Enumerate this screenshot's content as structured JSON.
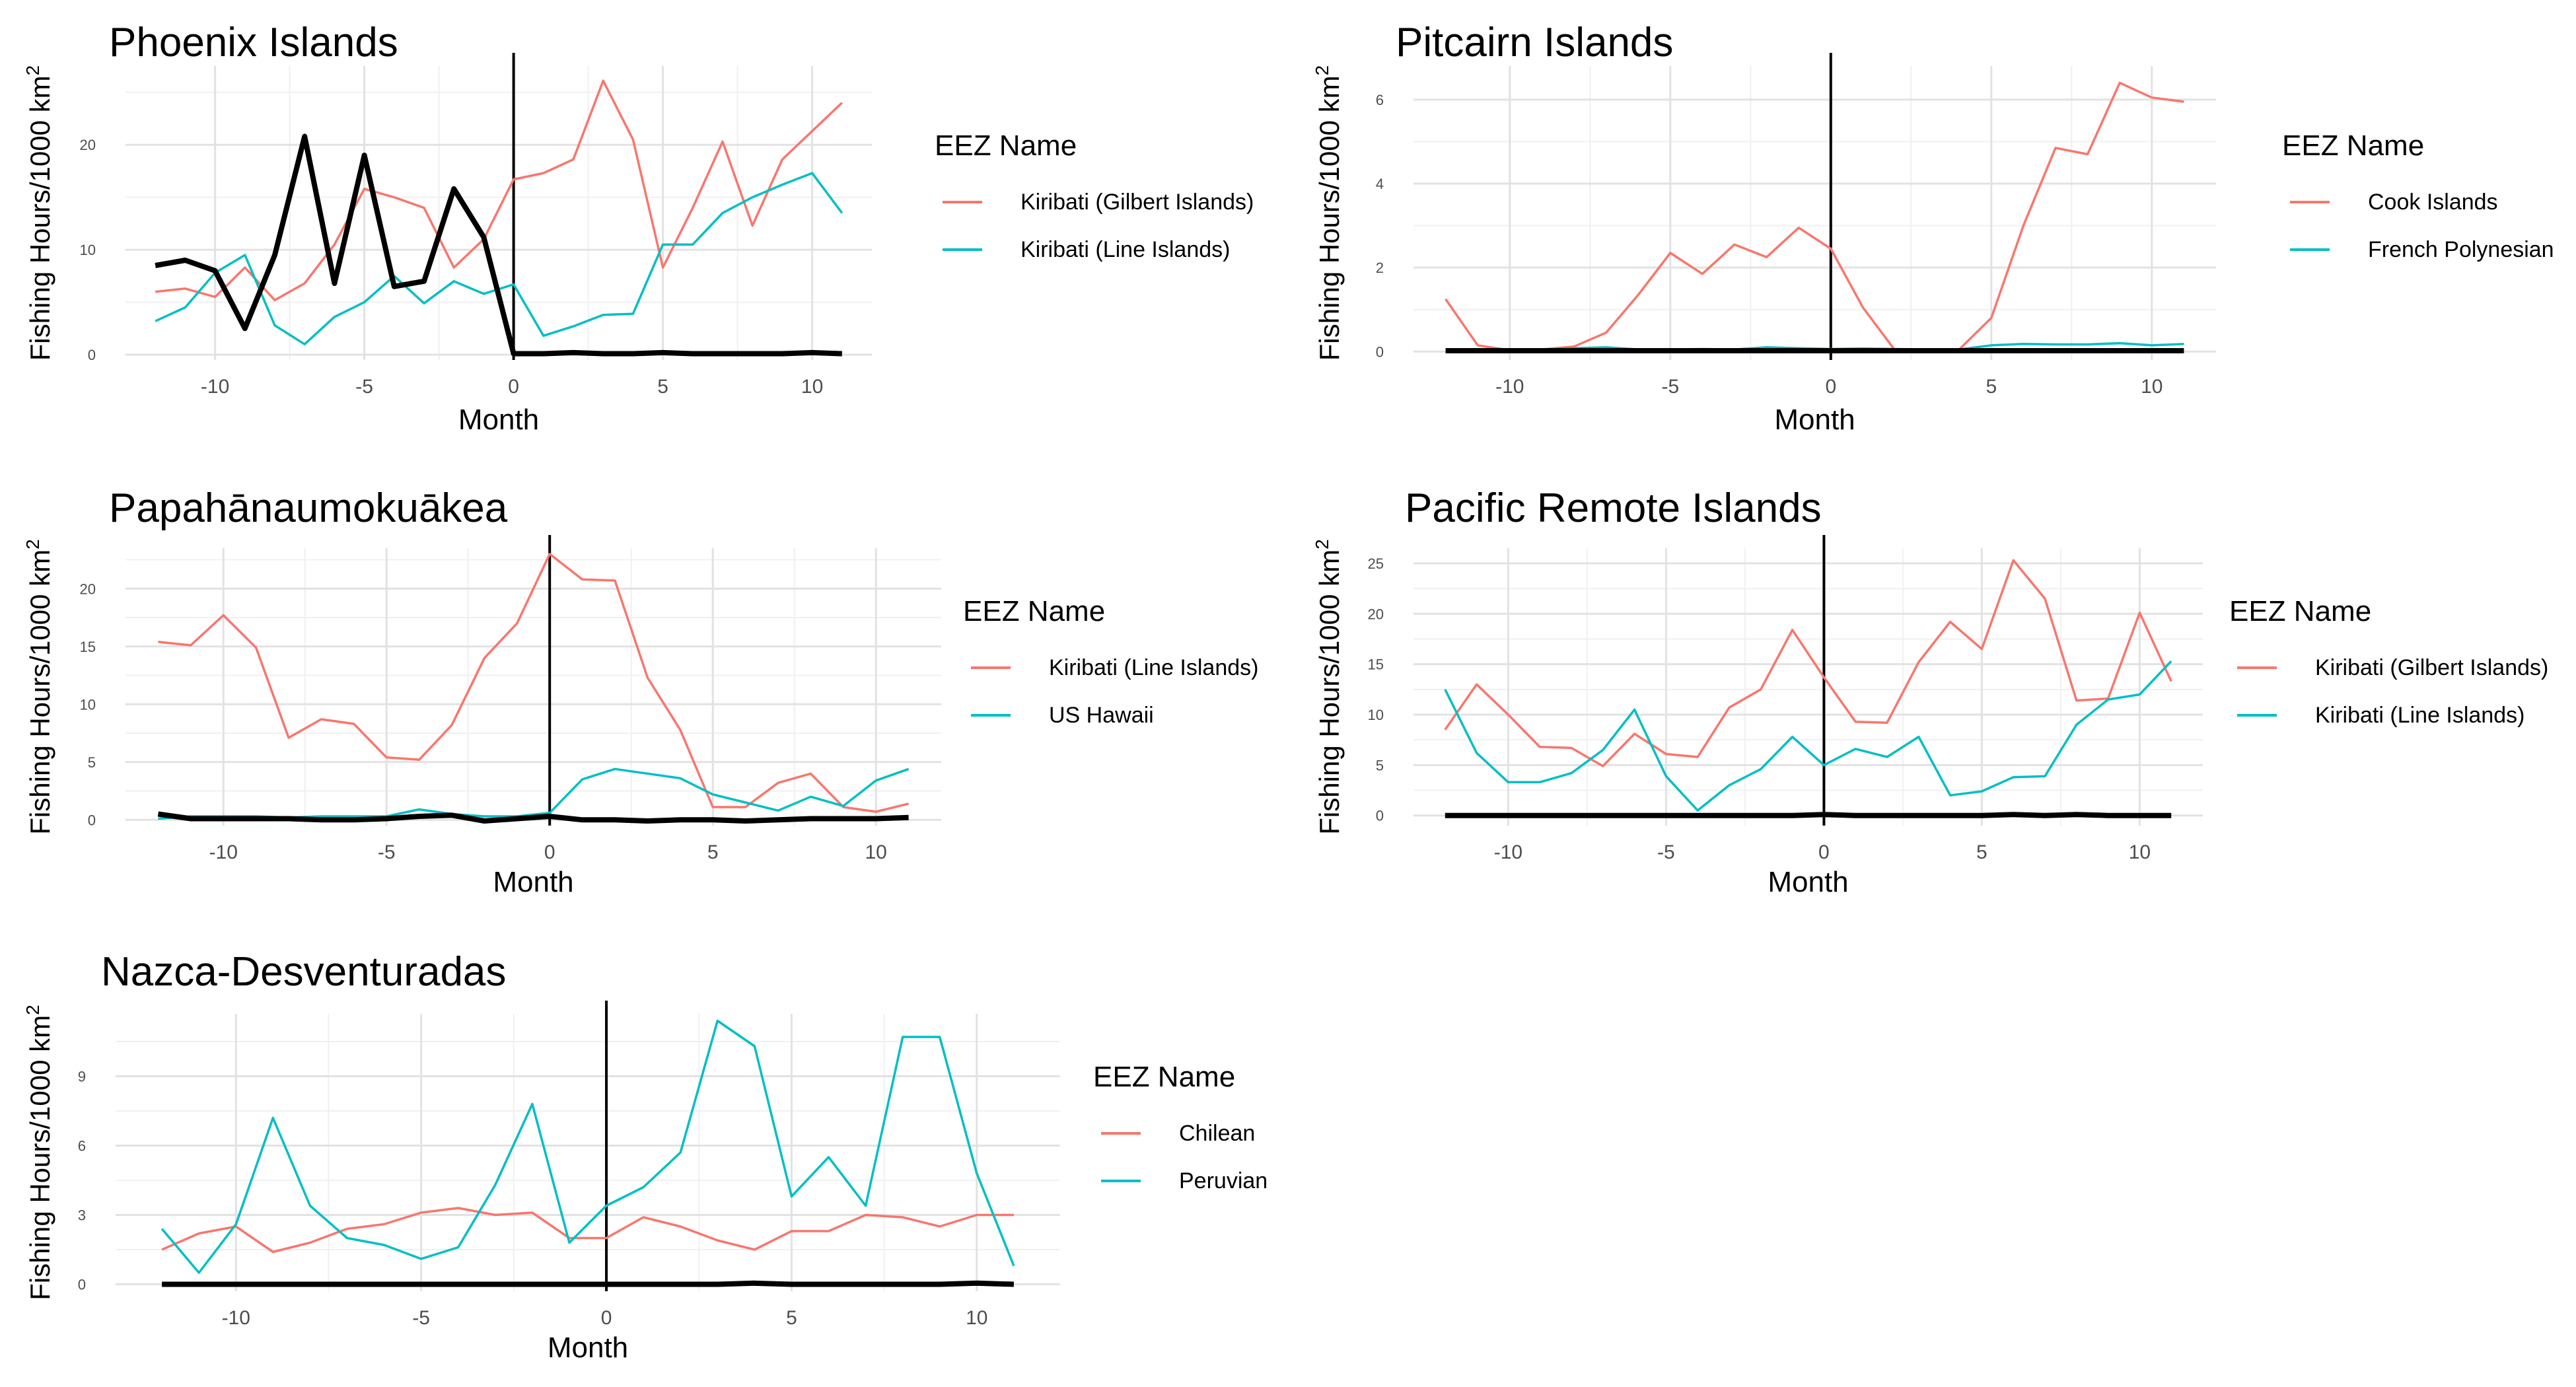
{
  "chart_data": [
    {
      "type": "line",
      "title": "Phoenix Islands",
      "xlabel": "Month",
      "ylabel": "Fishing Hours/1000 km",
      "ylabel_superscript": "2",
      "xlim": [
        -13,
        12
      ],
      "ylim": [
        -0.5,
        27.5
      ],
      "xticks": [
        -10,
        -5,
        0,
        5,
        10
      ],
      "xtick_labels": [
        "-10",
        "-5",
        "0",
        "5",
        "10"
      ],
      "yticks": [
        0,
        10,
        20
      ],
      "ytick_labels": [
        "0",
        "10",
        "20"
      ],
      "vline_x": 0,
      "grid": true,
      "legend_title": "EEZ Name",
      "legend_position": "right",
      "x": [
        -12,
        -11,
        -10,
        -9,
        -8,
        -7,
        -6,
        -5,
        -4,
        -3,
        -2,
        -1,
        0,
        1,
        2,
        3,
        4,
        5,
        6,
        7,
        8,
        9,
        10,
        11
      ],
      "series": [
        {
          "name": "Kiribati (Gilbert Islands)",
          "color": "#F8766D",
          "width": "thin",
          "values": [
            6.0,
            6.3,
            5.5,
            8.3,
            5.2,
            6.8,
            10.5,
            15.8,
            15.0,
            14.0,
            8.3,
            11.0,
            16.7,
            17.3,
            18.6,
            26.1,
            20.5,
            8.3,
            14.0,
            20.3,
            12.3,
            18.6,
            21.3,
            24.0
          ]
        },
        {
          "name": "Kiribati (Line Islands)",
          "color": "#00BFC4",
          "width": "thin",
          "values": [
            3.2,
            4.5,
            7.8,
            9.5,
            2.8,
            1.0,
            3.6,
            5.0,
            7.5,
            4.9,
            7.0,
            5.8,
            6.7,
            1.8,
            2.7,
            3.8,
            3.9,
            10.5,
            10.5,
            13.5,
            15.0,
            16.2,
            17.3,
            13.5
          ]
        },
        {
          "name": "",
          "color": "#000000",
          "width": "thick",
          "values": [
            8.5,
            9.0,
            8.0,
            2.5,
            9.5,
            20.8,
            6.8,
            19.0,
            6.5,
            7.0,
            15.8,
            11.2,
            0.1,
            0.1,
            0.2,
            0.1,
            0.1,
            0.2,
            0.1,
            0.1,
            0.1,
            0.1,
            0.2,
            0.1
          ]
        }
      ]
    },
    {
      "type": "line",
      "title": "Pitcairn Islands",
      "xlabel": "Month",
      "ylabel": "Fishing Hours/1000 km",
      "ylabel_superscript": "2",
      "xlim": [
        -13,
        12
      ],
      "ylim": [
        -0.2,
        6.8
      ],
      "xticks": [
        -10,
        -5,
        0,
        5,
        10
      ],
      "xtick_labels": [
        "-10",
        "-5",
        "0",
        "5",
        "10"
      ],
      "yticks": [
        0,
        2,
        4,
        6
      ],
      "ytick_labels": [
        "0",
        "2",
        "4",
        "6"
      ],
      "vline_x": 0,
      "grid": true,
      "legend_title": "EEZ Name",
      "legend_position": "right",
      "x": [
        -12,
        -11,
        -10,
        -9,
        -8,
        -7,
        -6,
        -5,
        -4,
        -3,
        -2,
        -1,
        0,
        1,
        2,
        3,
        4,
        5,
        6,
        7,
        8,
        9,
        10,
        11
      ],
      "series": [
        {
          "name": "Cook Islands",
          "color": "#F8766D",
          "width": "thin",
          "values": [
            1.25,
            0.15,
            0.03,
            0.05,
            0.12,
            0.45,
            1.35,
            2.35,
            1.85,
            2.55,
            2.25,
            2.95,
            2.45,
            1.05,
            0.03,
            0.05,
            0.05,
            0.8,
            3.0,
            4.85,
            4.7,
            6.4,
            6.05,
            5.95
          ]
        },
        {
          "name": "French Polynesian",
          "color": "#00BFC4",
          "width": "thin",
          "values": [
            0.02,
            0.02,
            0.04,
            0.05,
            0.08,
            0.1,
            0.05,
            0.05,
            0.06,
            0.05,
            0.1,
            0.08,
            0.06,
            0.07,
            0.06,
            0.05,
            0.05,
            0.15,
            0.18,
            0.17,
            0.17,
            0.2,
            0.15,
            0.18
          ]
        },
        {
          "name": "",
          "color": "#000000",
          "width": "thick",
          "values": [
            0.02,
            0.02,
            0.02,
            0.02,
            0.02,
            0.02,
            0.02,
            0.02,
            0.02,
            0.02,
            0.02,
            0.02,
            0.02,
            0.02,
            0.02,
            0.02,
            0.02,
            0.02,
            0.02,
            0.02,
            0.02,
            0.02,
            0.02,
            0.02
          ]
        }
      ]
    },
    {
      "type": "line",
      "title": "Papahānaumokuākea",
      "xlabel": "Month",
      "ylabel": "Fishing Hours/1000 km",
      "ylabel_superscript": "2",
      "xlim": [
        -13,
        12
      ],
      "ylim": [
        -0.5,
        23.5
      ],
      "xticks": [
        -10,
        -5,
        0,
        5,
        10
      ],
      "xtick_labels": [
        "-10",
        "-5",
        "0",
        "5",
        "10"
      ],
      "yticks": [
        0,
        5,
        10,
        15,
        20
      ],
      "ytick_labels": [
        "0",
        "5",
        "10",
        "15",
        "20"
      ],
      "vline_x": 0,
      "grid": true,
      "legend_title": "EEZ Name",
      "legend_position": "right",
      "x": [
        -12,
        -11,
        -10,
        -9,
        -8,
        -7,
        -6,
        -5,
        -4,
        -3,
        -2,
        -1,
        0,
        1,
        2,
        3,
        4,
        5,
        6,
        7,
        8,
        9,
        10,
        11
      ],
      "series": [
        {
          "name": "Kiribati (Line Islands)",
          "color": "#F8766D",
          "width": "thin",
          "values": [
            15.4,
            15.1,
            17.7,
            14.9,
            7.1,
            8.7,
            8.3,
            5.4,
            5.2,
            8.2,
            14.0,
            17.0,
            23.0,
            20.8,
            20.7,
            12.3,
            7.8,
            1.1,
            1.1,
            3.2,
            4.0,
            1.1,
            0.7,
            1.4
          ]
        },
        {
          "name": "US Hawaii",
          "color": "#00BFC4",
          "width": "thin",
          "values": [
            0.1,
            0.3,
            0.3,
            0.3,
            0.2,
            0.3,
            0.3,
            0.3,
            0.9,
            0.5,
            0.3,
            0.3,
            0.6,
            3.5,
            4.4,
            4.0,
            3.6,
            2.2,
            1.5,
            0.8,
            2.0,
            1.2,
            3.4,
            4.4
          ]
        },
        {
          "name": "",
          "color": "#000000",
          "width": "thick",
          "values": [
            0.5,
            0.1,
            0.1,
            0.1,
            0.1,
            0.0,
            0.0,
            0.1,
            0.3,
            0.4,
            -0.1,
            0.1,
            0.3,
            0.0,
            0.0,
            -0.1,
            0.0,
            0.0,
            -0.1,
            0.0,
            0.1,
            0.1,
            0.1,
            0.2
          ]
        }
      ]
    },
    {
      "type": "line",
      "title": "Pacific Remote Islands",
      "xlabel": "Month",
      "ylabel": "Fishing Hours/1000 km",
      "ylabel_superscript": "2",
      "xlim": [
        -13,
        12
      ],
      "ylim": [
        -1,
        26.5
      ],
      "xticks": [
        -10,
        -5,
        0,
        5,
        10
      ],
      "xtick_labels": [
        "-10",
        "-5",
        "0",
        "5",
        "10"
      ],
      "yticks": [
        0,
        5,
        10,
        15,
        20,
        25
      ],
      "ytick_labels": [
        "0",
        "5",
        "10",
        "15",
        "20",
        "25"
      ],
      "vline_x": 0,
      "grid": true,
      "legend_title": "EEZ Name",
      "legend_position": "right",
      "x": [
        -12,
        -11,
        -10,
        -9,
        -8,
        -7,
        -6,
        -5,
        -4,
        -3,
        -2,
        -1,
        0,
        1,
        2,
        3,
        4,
        5,
        6,
        7,
        8,
        9,
        10,
        11
      ],
      "series": [
        {
          "name": "Kiribati (Gilbert Islands)",
          "color": "#F8766D",
          "width": "thin",
          "values": [
            8.5,
            13.0,
            10.0,
            6.8,
            6.7,
            4.9,
            8.1,
            6.1,
            5.8,
            10.7,
            12.5,
            18.4,
            13.7,
            9.3,
            9.2,
            15.2,
            19.2,
            16.5,
            25.3,
            21.5,
            11.4,
            11.6,
            20.1,
            13.3
          ]
        },
        {
          "name": "Kiribati (Line Islands)",
          "color": "#00BFC4",
          "width": "thin",
          "values": [
            12.5,
            6.2,
            3.3,
            3.3,
            4.2,
            6.5,
            10.5,
            3.9,
            0.5,
            3.0,
            4.6,
            7.8,
            5.0,
            6.6,
            5.8,
            7.8,
            2.0,
            2.4,
            3.8,
            3.9,
            9.0,
            11.5,
            12.0,
            15.3
          ]
        },
        {
          "name": "",
          "color": "#000000",
          "width": "thick",
          "values": [
            0.0,
            0.0,
            0.0,
            0.0,
            0.0,
            0.0,
            0.0,
            0.0,
            0.0,
            0.0,
            0.0,
            0.0,
            0.1,
            0.0,
            0.0,
            0.0,
            0.0,
            0.0,
            0.1,
            0.0,
            0.1,
            0.0,
            0.0,
            0.0
          ]
        }
      ]
    },
    {
      "type": "line",
      "title": "Nazca-Desventuradas",
      "xlabel": "Month",
      "ylabel": "Fishing Hours/1000 km",
      "ylabel_superscript": "2",
      "xlim": [
        -13.25,
        12.25
      ],
      "ylim": [
        -0.3,
        11.7
      ],
      "xticks": [
        -10,
        -5,
        0,
        5,
        10
      ],
      "xtick_labels": [
        "-10",
        "-5",
        "0",
        "5",
        "10"
      ],
      "yticks": [
        0,
        3,
        6,
        9
      ],
      "ytick_labels": [
        "0",
        "3",
        "6",
        "9"
      ],
      "vline_x": 0,
      "grid": true,
      "legend_title": "EEZ Name",
      "legend_position": "right",
      "x": [
        -12,
        -11,
        -10,
        -9,
        -8,
        -7,
        -6,
        -5,
        -4,
        -3,
        -2,
        -1,
        0,
        1,
        2,
        3,
        4,
        5,
        6,
        7,
        8,
        9,
        10,
        11
      ],
      "series": [
        {
          "name": "Chilean",
          "color": "#F8766D",
          "width": "thin",
          "values": [
            1.5,
            2.2,
            2.5,
            1.4,
            1.8,
            2.4,
            2.6,
            3.1,
            3.3,
            3.0,
            3.1,
            2.0,
            2.0,
            2.9,
            2.5,
            1.9,
            1.5,
            2.3,
            2.3,
            3.0,
            2.9,
            2.5,
            3.0,
            3.0
          ]
        },
        {
          "name": "Peruvian",
          "color": "#00BFC4",
          "width": "thin",
          "values": [
            2.4,
            0.5,
            2.6,
            7.2,
            3.4,
            2.0,
            1.7,
            1.1,
            1.6,
            4.3,
            7.8,
            1.8,
            3.4,
            4.2,
            5.7,
            11.4,
            10.3,
            3.8,
            5.5,
            3.4,
            10.7,
            10.7,
            4.8,
            0.8
          ]
        },
        {
          "name": "",
          "color": "#000000",
          "width": "thick",
          "values": [
            0.0,
            0.0,
            0.0,
            0.0,
            0.0,
            0.0,
            0.0,
            0.0,
            0.0,
            0.0,
            0.0,
            0.0,
            0.0,
            0.0,
            0.0,
            0.0,
            0.05,
            0.0,
            0.0,
            0.0,
            0.0,
            0.0,
            0.05,
            0.0
          ]
        }
      ]
    }
  ]
}
